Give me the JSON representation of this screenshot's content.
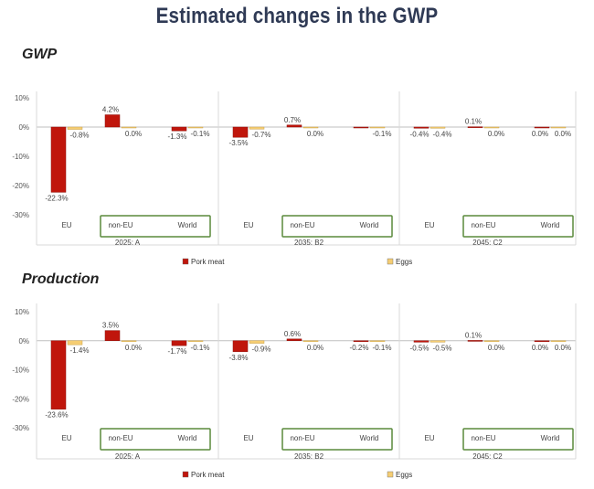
{
  "title": "Estimated changes in the GWP",
  "colors": {
    "pork": "#c0160c",
    "eggs": "#f5cd73",
    "frame": "#5a8a3c",
    "title": "#2f3a55"
  },
  "legend": [
    {
      "name": "Pork meat",
      "color": "#c0160c"
    },
    {
      "name": "Eggs",
      "color": "#f5cd73"
    }
  ],
  "chart_data": [
    {
      "type": "bar",
      "title": "GWP",
      "yticks": [
        "10%",
        "0%",
        "-10%",
        "-20%",
        "-30%"
      ],
      "ylim": [
        -30,
        10
      ],
      "groups": [
        "2025: A",
        "2035: B2",
        "2045: C2"
      ],
      "categories": [
        "EU",
        "non-EU",
        "World"
      ],
      "series": [
        {
          "name": "Pork meat",
          "values": [
            [
              -22.3,
              4.2,
              -1.3
            ],
            [
              -3.5,
              0.7,
              0.0
            ],
            [
              -0.4,
              0.1,
              0.0
            ]
          ],
          "labels": [
            [
              "-22.3%",
              "4.2%",
              "-1.3%"
            ],
            [
              "-3.5%",
              "0.7%",
              ""
            ],
            [
              "-0.4%",
              "0.1%",
              "0.0%"
            ]
          ]
        },
        {
          "name": "Eggs",
          "values": [
            [
              -0.8,
              0.0,
              -0.1
            ],
            [
              -0.7,
              0.0,
              -0.1
            ],
            [
              -0.4,
              0.0,
              0.0
            ]
          ],
          "labels": [
            [
              "-0.8%",
              "0.0%",
              "-0.1%"
            ],
            [
              "-0.7%",
              "0.0%",
              "-0.1%"
            ],
            [
              "-0.4%",
              "0.0%",
              "0.0%"
            ]
          ]
        }
      ]
    },
    {
      "type": "bar",
      "title": "Production",
      "yticks": [
        "10%",
        "0%",
        "-10%",
        "-20%",
        "-30%"
      ],
      "ylim": [
        -30,
        10
      ],
      "groups": [
        "2025: A",
        "2035: B2",
        "2045: C2"
      ],
      "categories": [
        "EU",
        "non-EU",
        "World"
      ],
      "series": [
        {
          "name": "Pork meat",
          "values": [
            [
              -23.6,
              3.5,
              -1.7
            ],
            [
              -3.8,
              0.6,
              -0.2
            ],
            [
              -0.5,
              0.1,
              0.0
            ]
          ],
          "labels": [
            [
              "-23.6%",
              "3.5%",
              "-1.7%"
            ],
            [
              "-3.8%",
              "0.6%",
              "-0.2%"
            ],
            [
              "-0.5%",
              "0.1%",
              "0.0%"
            ]
          ]
        },
        {
          "name": "Eggs",
          "values": [
            [
              -1.4,
              0.0,
              -0.1
            ],
            [
              -0.9,
              0.0,
              -0.1
            ],
            [
              -0.5,
              0.0,
              0.0
            ]
          ],
          "labels": [
            [
              "-1.4%",
              "0.0%",
              "-0.1%"
            ],
            [
              "-0.9%",
              "0.0%",
              "-0.1%"
            ],
            [
              "-0.5%",
              "0.0%",
              "0.0%"
            ]
          ]
        }
      ]
    }
  ]
}
